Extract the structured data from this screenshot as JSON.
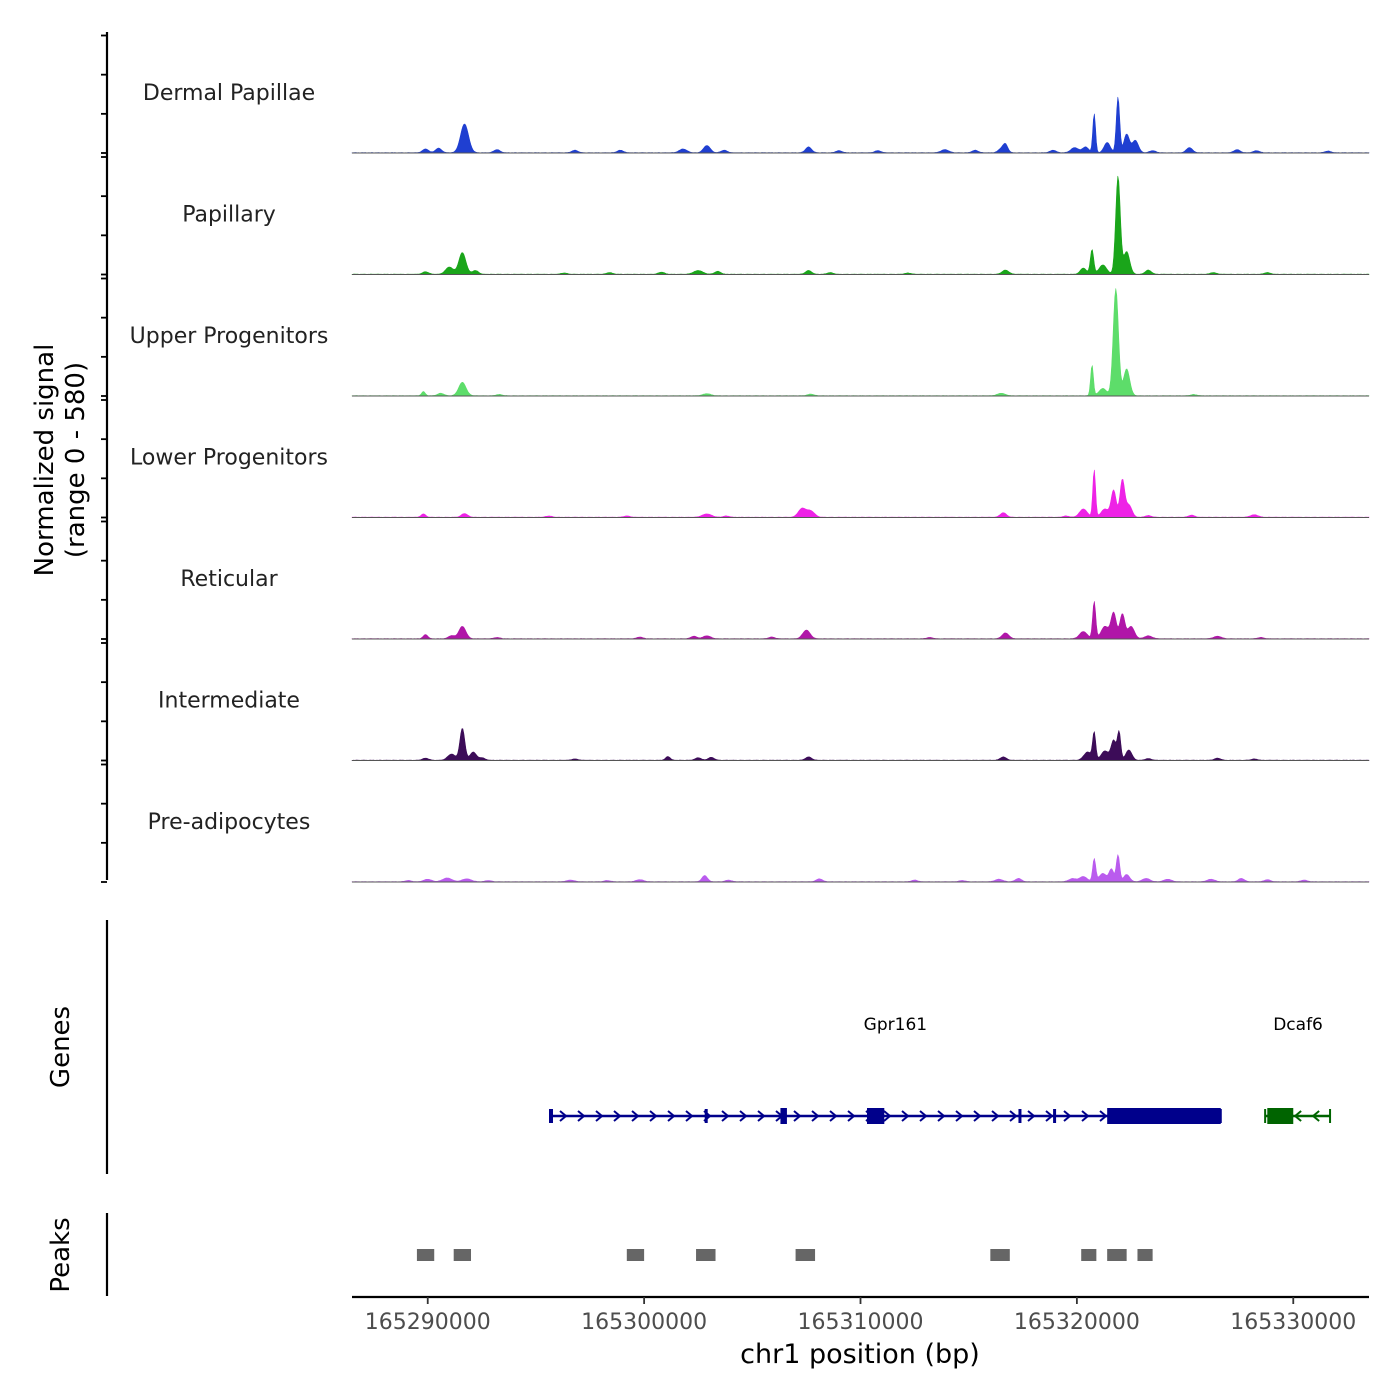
{
  "chart_data": {
    "type": "area",
    "chromosome": "chr1",
    "xlim": [
      165286500,
      165333500
    ],
    "signal_axis": {
      "ylabel_line1": "Normalized signal",
      "ylabel_line2": "(range 0 - 580)",
      "ylim": [
        0,
        580
      ]
    },
    "genes_axis_label": "Genes",
    "peaks_axis_label": "Peaks",
    "xlabel": "chr1 position (bp)",
    "xticks": [
      165290000,
      165300000,
      165310000,
      165320000,
      165330000
    ],
    "xtick_labels": [
      "165290000",
      "165300000",
      "165310000",
      "165320000",
      "165330000"
    ],
    "series": [
      {
        "name": "Dermal Papillae",
        "color": "#1f3fd1",
        "peaks": [
          [
            165289900,
            18,
            200
          ],
          [
            165290500,
            22,
            200
          ],
          [
            165291700,
            140,
            260
          ],
          [
            165293200,
            15,
            200
          ],
          [
            165296800,
            12,
            200
          ],
          [
            165298900,
            12,
            200
          ],
          [
            165301800,
            18,
            250
          ],
          [
            165302900,
            35,
            220
          ],
          [
            165303700,
            12,
            200
          ],
          [
            165307600,
            28,
            200
          ],
          [
            165309000,
            10,
            200
          ],
          [
            165310800,
            10,
            200
          ],
          [
            165313900,
            15,
            250
          ],
          [
            165315300,
            12,
            200
          ],
          [
            165316500,
            18,
            200
          ],
          [
            165316700,
            38,
            160
          ],
          [
            165318900,
            12,
            200
          ],
          [
            165319900,
            25,
            250
          ],
          [
            165320400,
            28,
            200
          ],
          [
            165320800,
            190,
            90
          ],
          [
            165321400,
            50,
            200
          ],
          [
            165321900,
            270,
            110
          ],
          [
            165322300,
            90,
            180
          ],
          [
            165322700,
            60,
            200
          ],
          [
            165323500,
            10,
            200
          ],
          [
            165325200,
            25,
            200
          ],
          [
            165327400,
            15,
            200
          ],
          [
            165328300,
            10,
            200
          ],
          [
            165331600,
            8,
            200
          ]
        ]
      },
      {
        "name": "Papillary",
        "color": "#1aa51a",
        "peaks": [
          [
            165289900,
            12,
            200
          ],
          [
            165291000,
            35,
            250
          ],
          [
            165291600,
            105,
            230
          ],
          [
            165292200,
            18,
            200
          ],
          [
            165296300,
            6,
            200
          ],
          [
            165298400,
            8,
            200
          ],
          [
            165300800,
            10,
            200
          ],
          [
            165302500,
            18,
            300
          ],
          [
            165303400,
            14,
            200
          ],
          [
            165307600,
            18,
            200
          ],
          [
            165308600,
            8,
            200
          ],
          [
            165312200,
            6,
            200
          ],
          [
            165316700,
            20,
            220
          ],
          [
            165320300,
            30,
            200
          ],
          [
            165320700,
            120,
            110
          ],
          [
            165321200,
            45,
            250
          ],
          [
            165321900,
            475,
            150
          ],
          [
            165322300,
            110,
            200
          ],
          [
            165323300,
            20,
            200
          ],
          [
            165326300,
            8,
            200
          ],
          [
            165328800,
            8,
            200
          ]
        ]
      },
      {
        "name": "Upper Progenitors",
        "color": "#5ddd6a",
        "peaks": [
          [
            165289800,
            20,
            120
          ],
          [
            165290600,
            12,
            200
          ],
          [
            165291600,
            65,
            240
          ],
          [
            165293300,
            6,
            200
          ],
          [
            165302900,
            10,
            250
          ],
          [
            165307700,
            8,
            200
          ],
          [
            165316500,
            12,
            250
          ],
          [
            165320700,
            150,
            90
          ],
          [
            165321200,
            35,
            250
          ],
          [
            165321800,
            520,
            170
          ],
          [
            165322300,
            130,
            200
          ],
          [
            165325400,
            6,
            200
          ]
        ]
      },
      {
        "name": "Lower Progenitors",
        "color": "#ee22e6",
        "peaks": [
          [
            165289800,
            16,
            150
          ],
          [
            165291700,
            18,
            200
          ],
          [
            165295600,
            6,
            200
          ],
          [
            165299200,
            6,
            200
          ],
          [
            165302900,
            16,
            300
          ],
          [
            165303800,
            6,
            200
          ],
          [
            165307300,
            42,
            250
          ],
          [
            165307700,
            30,
            250
          ],
          [
            165316600,
            22,
            200
          ],
          [
            165319500,
            6,
            200
          ],
          [
            165320300,
            40,
            250
          ],
          [
            165320800,
            230,
            90
          ],
          [
            165321300,
            40,
            250
          ],
          [
            165321700,
            130,
            160
          ],
          [
            165322100,
            180,
            150
          ],
          [
            165322400,
            60,
            200
          ],
          [
            165323300,
            8,
            200
          ],
          [
            165325300,
            10,
            200
          ],
          [
            165328200,
            12,
            250
          ]
        ]
      },
      {
        "name": "Reticular",
        "color": "#b016a8",
        "peaks": [
          [
            165289900,
            20,
            150
          ],
          [
            165291100,
            15,
            200
          ],
          [
            165291600,
            60,
            230
          ],
          [
            165293200,
            6,
            200
          ],
          [
            165299800,
            8,
            200
          ],
          [
            165302300,
            12,
            200
          ],
          [
            165302900,
            14,
            250
          ],
          [
            165305900,
            8,
            200
          ],
          [
            165307500,
            42,
            240
          ],
          [
            165313200,
            6,
            200
          ],
          [
            165316700,
            28,
            220
          ],
          [
            165320300,
            35,
            250
          ],
          [
            165320800,
            180,
            100
          ],
          [
            165321300,
            60,
            250
          ],
          [
            165321700,
            125,
            170
          ],
          [
            165322100,
            120,
            160
          ],
          [
            165322500,
            60,
            220
          ],
          [
            165323300,
            14,
            250
          ],
          [
            165326500,
            12,
            250
          ],
          [
            165328500,
            6,
            200
          ]
        ]
      },
      {
        "name": "Intermediate",
        "color": "#3c0c58",
        "peaks": [
          [
            165289900,
            10,
            200
          ],
          [
            165291100,
            30,
            250
          ],
          [
            165291600,
            155,
            160
          ],
          [
            165292100,
            40,
            200
          ],
          [
            165292500,
            12,
            200
          ],
          [
            165296800,
            6,
            200
          ],
          [
            165301100,
            18,
            150
          ],
          [
            165302500,
            12,
            200
          ],
          [
            165303100,
            14,
            200
          ],
          [
            165307600,
            16,
            200
          ],
          [
            165316600,
            16,
            200
          ],
          [
            165320500,
            40,
            250
          ],
          [
            165320800,
            130,
            100
          ],
          [
            165321300,
            45,
            250
          ],
          [
            165321700,
            95,
            160
          ],
          [
            165321950,
            135,
            110
          ],
          [
            165322400,
            50,
            200
          ],
          [
            165323300,
            8,
            200
          ],
          [
            165326500,
            10,
            200
          ],
          [
            165328200,
            6,
            200
          ]
        ]
      },
      {
        "name": "Pre-adipocytes",
        "color": "#ba5bee",
        "peaks": [
          [
            165289100,
            6,
            200
          ],
          [
            165290000,
            12,
            250
          ],
          [
            165290900,
            18,
            300
          ],
          [
            165291800,
            14,
            300
          ],
          [
            165292800,
            6,
            200
          ],
          [
            165296600,
            8,
            250
          ],
          [
            165298300,
            6,
            200
          ],
          [
            165299800,
            10,
            250
          ],
          [
            165302800,
            30,
            180
          ],
          [
            165303900,
            8,
            200
          ],
          [
            165308100,
            14,
            200
          ],
          [
            165312500,
            8,
            200
          ],
          [
            165314700,
            6,
            200
          ],
          [
            165316400,
            12,
            250
          ],
          [
            165317300,
            16,
            200
          ],
          [
            165319800,
            15,
            250
          ],
          [
            165320300,
            25,
            250
          ],
          [
            165320800,
            110,
            100
          ],
          [
            165321200,
            40,
            250
          ],
          [
            165321600,
            60,
            150
          ],
          [
            165321900,
            130,
            110
          ],
          [
            165322300,
            35,
            200
          ],
          [
            165323200,
            16,
            250
          ],
          [
            165324200,
            12,
            250
          ],
          [
            165326200,
            12,
            250
          ],
          [
            165327600,
            16,
            200
          ],
          [
            165328800,
            10,
            200
          ],
          [
            165330500,
            8,
            200
          ]
        ]
      }
    ],
    "genes": [
      {
        "name": "Gpr161",
        "color": "#00008b",
        "start": 165295650,
        "end": 165326650,
        "strand": "+",
        "exons": [
          [
            165295650,
            165295700
          ],
          [
            165302800,
            165302900
          ],
          [
            165306300,
            165306600
          ],
          [
            165310300,
            165311100
          ],
          [
            165317300,
            165317350
          ],
          [
            165318900,
            165318950
          ],
          [
            165321400,
            165326650
          ]
        ]
      },
      {
        "name": "Dcaf6",
        "color": "#006400",
        "start": 165328700,
        "end": 165331700,
        "strand": "-",
        "exons": [
          [
            165328800,
            165330000
          ]
        ]
      }
    ],
    "peaks_track": [
      [
        165289500,
        165290300
      ],
      [
        165291200,
        165292000
      ],
      [
        165299200,
        165300000
      ],
      [
        165302400,
        165303300
      ],
      [
        165307000,
        165307900
      ],
      [
        165316000,
        165316900
      ],
      [
        165320200,
        165320900
      ],
      [
        165321400,
        165322300
      ],
      [
        165322800,
        165323500
      ]
    ]
  }
}
